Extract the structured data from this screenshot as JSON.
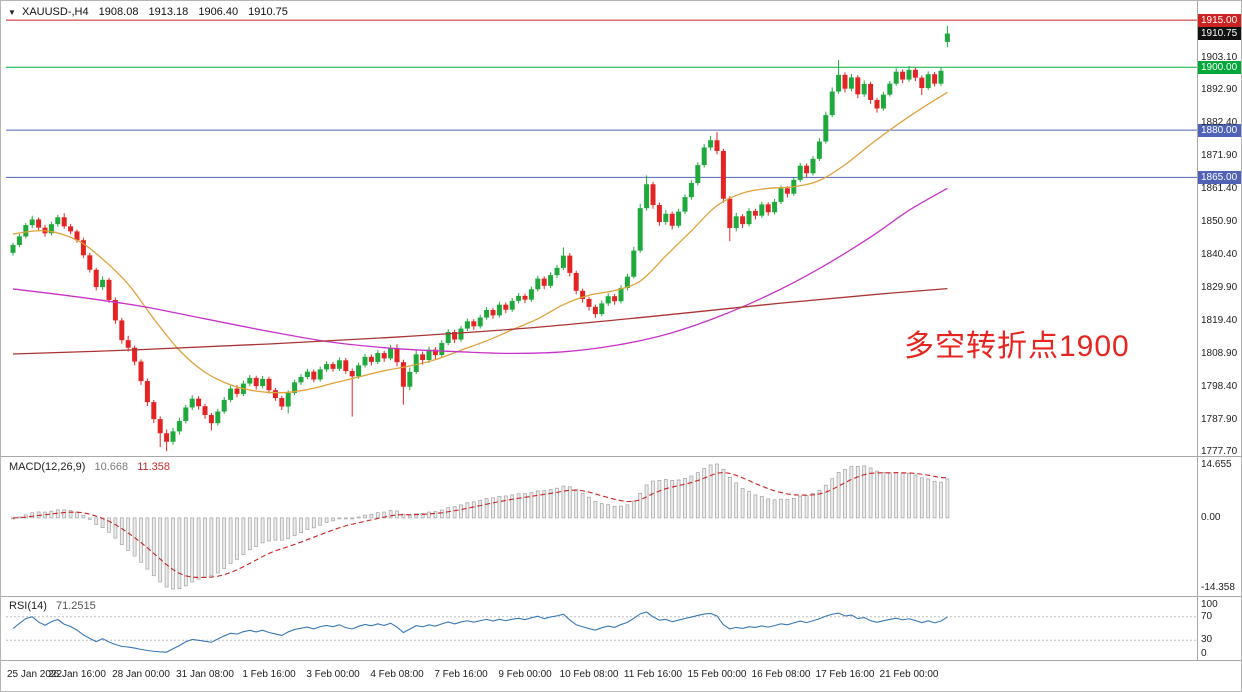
{
  "theme": {
    "candle_up": "#1fa93c",
    "candle_down": "#e32424",
    "macd_hist_fill": "#ececec",
    "macd_hist_stroke": "#a6a6a6",
    "macd_signal": "#cc2222",
    "rsi_line": "#3878b5",
    "accent_red": "#cc2222",
    "accent_green": "#00a83a",
    "accent_blue": "#4f62b8"
  },
  "title_bar": {
    "marker": "▼",
    "symbol_period": "XAUUSD-,H4",
    "open": "1908.08",
    "high": "1913.18",
    "low": "1906.40",
    "close": "1910.75"
  },
  "annotation": {
    "text": "多空转折点1900",
    "color": "#e8241f"
  },
  "price_axis": {
    "range": {
      "top": 1919.5,
      "bottom": 1777.0
    },
    "ticks": [
      "1903.10",
      "1892.90",
      "1882.40",
      "1871.90",
      "1861.40",
      "1850.90",
      "1840.40",
      "1829.90",
      "1819.40",
      "1808.90",
      "1798.40",
      "1787.90",
      "1777.70"
    ],
    "badges": [
      {
        "label": "1915.00",
        "price": 1915.0,
        "color": "#cc2222"
      },
      {
        "label": "1910.75",
        "price": 1910.75,
        "color": "#111111"
      },
      {
        "label": "1900.00",
        "price": 1900.0,
        "color": "#00a83a"
      },
      {
        "label": "1880.00",
        "price": 1880.0,
        "color": "#4f62b8"
      },
      {
        "label": "1865.00",
        "price": 1865.0,
        "color": "#4f62b8"
      }
    ]
  },
  "macd_panel": {
    "name": "MACD(12,26,9)",
    "main_value": "10.668",
    "signal_value": "11.358",
    "axis_max": "14.655",
    "axis_zero": "0.00",
    "axis_min": "-14.358"
  },
  "rsi_panel": {
    "name": "RSI(14)",
    "value": "71.2515",
    "axis": [
      "100",
      "70",
      "30",
      "0"
    ],
    "levels": [
      70,
      30
    ]
  },
  "chart_data": {
    "type": "candlestick",
    "symbol": "XAUUSD-",
    "timeframe": "H4",
    "current_ohlc": {
      "open": 1908.08,
      "high": 1913.18,
      "low": 1906.4,
      "close": 1910.75
    },
    "bars_per_label": 10,
    "x_labels": [
      "25 Jan 2022",
      "26 Jan 16:00",
      "28 Jan 00:00",
      "31 Jan 08:00",
      "1 Feb 16:00",
      "3 Feb 00:00",
      "4 Feb 08:00",
      "7 Feb 16:00",
      "9 Feb 00:00",
      "10 Feb 08:00",
      "11 Feb 16:00",
      "15 Feb 00:00",
      "16 Feb 08:00",
      "17 Feb 16:00",
      "21 Feb 00:00"
    ],
    "horizontal_lines": [
      {
        "price": 1915.0,
        "color": "#cc2222"
      },
      {
        "price": 1900.0,
        "color": "#00b33c"
      },
      {
        "price": 1880.0,
        "color": "#4f62b8"
      },
      {
        "price": 1865.0,
        "color": "#4f62b8"
      }
    ],
    "moving_averages": [
      {
        "name": "fast-ma",
        "color": "#e0a23a",
        "points": [
          [
            0,
            1847
          ],
          [
            5,
            1848
          ],
          [
            10,
            1845
          ],
          [
            14,
            1839
          ],
          [
            18,
            1831
          ],
          [
            22,
            1820
          ],
          [
            26,
            1810
          ],
          [
            30,
            1803
          ],
          [
            34,
            1799
          ],
          [
            38,
            1797
          ],
          [
            42,
            1796.5
          ],
          [
            46,
            1797.5
          ],
          [
            50,
            1799.5
          ],
          [
            54,
            1801.5
          ],
          [
            58,
            1803.5
          ],
          [
            62,
            1805
          ],
          [
            66,
            1807
          ],
          [
            70,
            1810
          ],
          [
            74,
            1813
          ],
          [
            78,
            1816.5
          ],
          [
            82,
            1820
          ],
          [
            86,
            1824.5
          ],
          [
            90,
            1827.5
          ],
          [
            94,
            1829
          ],
          [
            98,
            1832
          ],
          [
            102,
            1840
          ],
          [
            106,
            1848
          ],
          [
            110,
            1856
          ],
          [
            114,
            1860
          ],
          [
            118,
            1861.5
          ],
          [
            122,
            1862
          ],
          [
            126,
            1864
          ],
          [
            130,
            1869
          ],
          [
            134,
            1875.5
          ],
          [
            138,
            1881.5
          ],
          [
            142,
            1887
          ],
          [
            146,
            1892
          ]
        ]
      },
      {
        "name": "medium-ma",
        "color": "#c932c9",
        "points": [
          [
            0,
            1829.5
          ],
          [
            10,
            1827
          ],
          [
            20,
            1824
          ],
          [
            30,
            1820
          ],
          [
            40,
            1816
          ],
          [
            50,
            1812.5
          ],
          [
            60,
            1810.5
          ],
          [
            70,
            1809.5
          ],
          [
            78,
            1809
          ],
          [
            86,
            1809.5
          ],
          [
            94,
            1811.5
          ],
          [
            102,
            1815
          ],
          [
            110,
            1820.5
          ],
          [
            118,
            1827.5
          ],
          [
            126,
            1836
          ],
          [
            134,
            1846
          ],
          [
            140,
            1854.5
          ],
          [
            146,
            1861.5
          ]
        ]
      },
      {
        "name": "slow-ma",
        "color": "#aa3333",
        "points": [
          [
            0,
            1808.8
          ],
          [
            20,
            1810.2
          ],
          [
            40,
            1812
          ],
          [
            60,
            1814.2
          ],
          [
            80,
            1817
          ],
          [
            100,
            1820.8
          ],
          [
            120,
            1825
          ],
          [
            135,
            1827.8
          ],
          [
            146,
            1829.6
          ]
        ]
      }
    ],
    "indicators": [
      {
        "type": "MACD",
        "fast": 12,
        "slow": 26,
        "signal": 9,
        "display_main": 10.668,
        "display_signal": 11.358
      },
      {
        "type": "RSI",
        "period": 14,
        "display_value": 71.2515,
        "levels": [
          70,
          30
        ]
      }
    ],
    "candles": [
      [
        1841.0,
        1844.2,
        1840.1,
        1843.5
      ],
      [
        1843.5,
        1847.0,
        1842.8,
        1846.2
      ],
      [
        1846.2,
        1850.5,
        1845.6,
        1849.8
      ],
      [
        1849.8,
        1852.8,
        1848.9,
        1851.6
      ],
      [
        1851.6,
        1852.2,
        1847.9,
        1849.0
      ],
      [
        1849.0,
        1849.9,
        1846.1,
        1847.2
      ],
      [
        1847.2,
        1850.9,
        1846.5,
        1850.1
      ],
      [
        1850.1,
        1853.1,
        1849.3,
        1852.3
      ],
      [
        1852.3,
        1853.6,
        1848.6,
        1849.4
      ],
      [
        1849.4,
        1850.2,
        1846.9,
        1847.8
      ],
      [
        1847.8,
        1848.4,
        1844.2,
        1845.0
      ],
      [
        1845.0,
        1845.8,
        1839.4,
        1840.2
      ],
      [
        1840.2,
        1841.0,
        1834.7,
        1835.6
      ],
      [
        1835.6,
        1836.2,
        1829.0,
        1830.1
      ],
      [
        1830.1,
        1833.5,
        1829.2,
        1832.4
      ],
      [
        1832.4,
        1833.0,
        1825.1,
        1826.0
      ],
      [
        1826.0,
        1826.8,
        1818.4,
        1819.5
      ],
      [
        1819.5,
        1820.3,
        1812.1,
        1813.2
      ],
      [
        1813.2,
        1814.6,
        1809.6,
        1810.8
      ],
      [
        1810.8,
        1811.5,
        1805.2,
        1806.4
      ],
      [
        1806.4,
        1807.1,
        1799.0,
        1800.2
      ],
      [
        1800.2,
        1801.0,
        1792.3,
        1793.5
      ],
      [
        1793.5,
        1794.2,
        1786.8,
        1788.1
      ],
      [
        1788.1,
        1789.0,
        1779.2,
        1783.6
      ],
      [
        1783.6,
        1784.8,
        1777.9,
        1780.9
      ],
      [
        1780.9,
        1785.3,
        1780.0,
        1784.2
      ],
      [
        1784.2,
        1788.6,
        1783.2,
        1787.5
      ],
      [
        1787.5,
        1792.6,
        1786.7,
        1791.8
      ],
      [
        1791.8,
        1795.7,
        1791.0,
        1794.6
      ],
      [
        1794.6,
        1795.4,
        1791.1,
        1792.2
      ],
      [
        1792.2,
        1793.0,
        1788.2,
        1789.4
      ],
      [
        1789.4,
        1790.1,
        1784.5,
        1786.8
      ],
      [
        1786.8,
        1791.4,
        1786.0,
        1790.5
      ],
      [
        1790.5,
        1795.1,
        1789.8,
        1794.2
      ],
      [
        1794.2,
        1798.7,
        1793.5,
        1797.8
      ],
      [
        1797.8,
        1798.9,
        1795.0,
        1796.1
      ],
      [
        1796.1,
        1800.3,
        1795.4,
        1799.4
      ],
      [
        1799.4,
        1802.1,
        1798.6,
        1801.2
      ],
      [
        1801.2,
        1801.9,
        1797.5,
        1798.6
      ],
      [
        1798.6,
        1801.8,
        1797.9,
        1800.9
      ],
      [
        1800.9,
        1801.6,
        1796.2,
        1797.3
      ],
      [
        1797.3,
        1798.0,
        1793.9,
        1794.8
      ],
      [
        1794.8,
        1795.5,
        1791.0,
        1792.1
      ],
      [
        1792.1,
        1797.2,
        1789.9,
        1796.4
      ],
      [
        1796.4,
        1800.6,
        1795.7,
        1799.8
      ],
      [
        1799.8,
        1802.4,
        1799.0,
        1801.5
      ],
      [
        1801.5,
        1804.1,
        1800.8,
        1803.2
      ],
      [
        1803.2,
        1803.9,
        1799.8,
        1800.7
      ],
      [
        1800.7,
        1804.8,
        1800.0,
        1803.9
      ],
      [
        1803.9,
        1806.5,
        1803.1,
        1805.6
      ],
      [
        1805.6,
        1806.3,
        1803.2,
        1804.1
      ],
      [
        1804.1,
        1807.7,
        1803.4,
        1806.8
      ],
      [
        1806.8,
        1807.5,
        1802.5,
        1803.4
      ],
      [
        1803.4,
        1804.2,
        1788.9,
        1801.7
      ],
      [
        1801.7,
        1806.1,
        1800.9,
        1805.2
      ],
      [
        1805.2,
        1808.8,
        1804.5,
        1807.9
      ],
      [
        1807.9,
        1808.6,
        1805.2,
        1806.3
      ],
      [
        1806.3,
        1810.0,
        1805.6,
        1809.1
      ],
      [
        1809.1,
        1809.8,
        1806.3,
        1807.4
      ],
      [
        1807.4,
        1811.7,
        1806.8,
        1810.6
      ],
      [
        1810.6,
        1811.9,
        1804.9,
        1806.2
      ],
      [
        1806.2,
        1807.0,
        1792.7,
        1798.4
      ],
      [
        1798.4,
        1804.5,
        1797.3,
        1803.1
      ],
      [
        1803.1,
        1809.9,
        1802.4,
        1808.7
      ],
      [
        1808.7,
        1809.6,
        1805.4,
        1806.9
      ],
      [
        1806.9,
        1811.1,
        1806.0,
        1810.2
      ],
      [
        1810.2,
        1811.0,
        1807.2,
        1808.5
      ],
      [
        1808.5,
        1813.2,
        1807.8,
        1812.3
      ],
      [
        1812.3,
        1816.7,
        1811.6,
        1815.8
      ],
      [
        1815.8,
        1816.5,
        1812.3,
        1813.4
      ],
      [
        1813.4,
        1817.8,
        1812.7,
        1816.9
      ],
      [
        1816.9,
        1820.1,
        1816.1,
        1819.2
      ],
      [
        1819.2,
        1819.9,
        1816.5,
        1817.6
      ],
      [
        1817.6,
        1821.3,
        1816.9,
        1820.4
      ],
      [
        1820.4,
        1823.7,
        1819.7,
        1822.8
      ],
      [
        1822.8,
        1823.5,
        1820.0,
        1821.1
      ],
      [
        1821.1,
        1825.4,
        1820.4,
        1824.5
      ],
      [
        1824.5,
        1825.2,
        1821.8,
        1822.9
      ],
      [
        1822.9,
        1826.6,
        1822.2,
        1825.7
      ],
      [
        1825.7,
        1828.2,
        1824.9,
        1827.3
      ],
      [
        1827.3,
        1828.0,
        1825.0,
        1826.1
      ],
      [
        1826.1,
        1830.3,
        1825.4,
        1829.4
      ],
      [
        1829.4,
        1833.7,
        1828.7,
        1832.8
      ],
      [
        1832.8,
        1833.5,
        1829.4,
        1830.5
      ],
      [
        1830.5,
        1834.8,
        1829.8,
        1833.9
      ],
      [
        1833.9,
        1837.1,
        1833.0,
        1836.2
      ],
      [
        1836.2,
        1842.7,
        1835.5,
        1840.1
      ],
      [
        1840.1,
        1840.9,
        1833.5,
        1834.6
      ],
      [
        1834.6,
        1835.3,
        1827.8,
        1828.9
      ],
      [
        1828.9,
        1829.6,
        1825.2,
        1826.3
      ],
      [
        1826.3,
        1827.0,
        1822.7,
        1823.8
      ],
      [
        1823.8,
        1824.5,
        1820.3,
        1821.5
      ],
      [
        1821.5,
        1825.8,
        1820.8,
        1824.9
      ],
      [
        1824.9,
        1828.1,
        1824.1,
        1827.2
      ],
      [
        1827.2,
        1827.9,
        1824.5,
        1825.6
      ],
      [
        1825.6,
        1830.7,
        1824.9,
        1829.8
      ],
      [
        1829.8,
        1834.3,
        1829.0,
        1833.4
      ],
      [
        1833.4,
        1842.9,
        1832.8,
        1841.7
      ],
      [
        1841.7,
        1856.6,
        1841.0,
        1855.2
      ],
      [
        1855.2,
        1865.6,
        1854.4,
        1862.8
      ],
      [
        1862.8,
        1863.5,
        1855.0,
        1856.2
      ],
      [
        1856.2,
        1857.0,
        1849.6,
        1850.8
      ],
      [
        1850.8,
        1854.6,
        1849.9,
        1853.4
      ],
      [
        1853.4,
        1854.1,
        1848.4,
        1849.6
      ],
      [
        1849.6,
        1855.0,
        1848.9,
        1854.1
      ],
      [
        1854.1,
        1859.6,
        1853.3,
        1858.7
      ],
      [
        1858.7,
        1864.1,
        1857.9,
        1863.2
      ],
      [
        1863.2,
        1869.8,
        1862.4,
        1868.9
      ],
      [
        1868.9,
        1875.6,
        1868.1,
        1874.5
      ],
      [
        1874.5,
        1878.2,
        1873.6,
        1876.8
      ],
      [
        1876.8,
        1879.4,
        1872.3,
        1873.4
      ],
      [
        1873.4,
        1874.1,
        1856.9,
        1858.2
      ],
      [
        1858.2,
        1859.0,
        1844.7,
        1848.9
      ],
      [
        1848.9,
        1853.7,
        1847.8,
        1852.6
      ],
      [
        1852.6,
        1853.3,
        1848.9,
        1850.1
      ],
      [
        1850.1,
        1855.2,
        1849.4,
        1854.3
      ],
      [
        1854.3,
        1855.0,
        1851.6,
        1852.8
      ],
      [
        1852.8,
        1857.3,
        1852.1,
        1856.4
      ],
      [
        1856.4,
        1857.1,
        1852.8,
        1853.9
      ],
      [
        1853.9,
        1858.1,
        1853.2,
        1857.2
      ],
      [
        1857.2,
        1862.4,
        1856.5,
        1861.5
      ],
      [
        1861.5,
        1862.2,
        1858.6,
        1859.8
      ],
      [
        1859.8,
        1865.1,
        1859.1,
        1864.2
      ],
      [
        1864.2,
        1869.6,
        1863.5,
        1868.7
      ],
      [
        1868.7,
        1869.4,
        1865.1,
        1866.3
      ],
      [
        1866.3,
        1871.8,
        1865.6,
        1870.9
      ],
      [
        1870.9,
        1877.5,
        1870.2,
        1876.4
      ],
      [
        1876.4,
        1885.9,
        1875.7,
        1884.8
      ],
      [
        1884.8,
        1893.6,
        1884.1,
        1892.3
      ],
      [
        1892.3,
        1902.3,
        1891.5,
        1897.6
      ],
      [
        1897.6,
        1898.4,
        1892.0,
        1893.2
      ],
      [
        1893.2,
        1897.9,
        1892.4,
        1896.8
      ],
      [
        1896.8,
        1897.5,
        1890.2,
        1891.4
      ],
      [
        1891.4,
        1895.8,
        1890.6,
        1894.7
      ],
      [
        1894.7,
        1895.4,
        1888.4,
        1889.6
      ],
      [
        1889.6,
        1890.3,
        1885.6,
        1886.9
      ],
      [
        1886.9,
        1892.2,
        1886.2,
        1891.3
      ],
      [
        1891.3,
        1895.7,
        1890.7,
        1894.8
      ],
      [
        1894.8,
        1899.7,
        1894.1,
        1898.6
      ],
      [
        1898.6,
        1899.3,
        1895.0,
        1896.1
      ],
      [
        1896.1,
        1900.4,
        1895.4,
        1899.2
      ],
      [
        1899.2,
        1899.9,
        1895.6,
        1896.7
      ],
      [
        1896.7,
        1897.4,
        1891.2,
        1893.4
      ],
      [
        1893.4,
        1898.7,
        1892.8,
        1897.8
      ],
      [
        1897.8,
        1898.5,
        1893.9,
        1894.8
      ],
      [
        1894.8,
        1899.8,
        1894.1,
        1898.9
      ],
      [
        1908.08,
        1913.18,
        1906.4,
        1910.75
      ]
    ]
  }
}
